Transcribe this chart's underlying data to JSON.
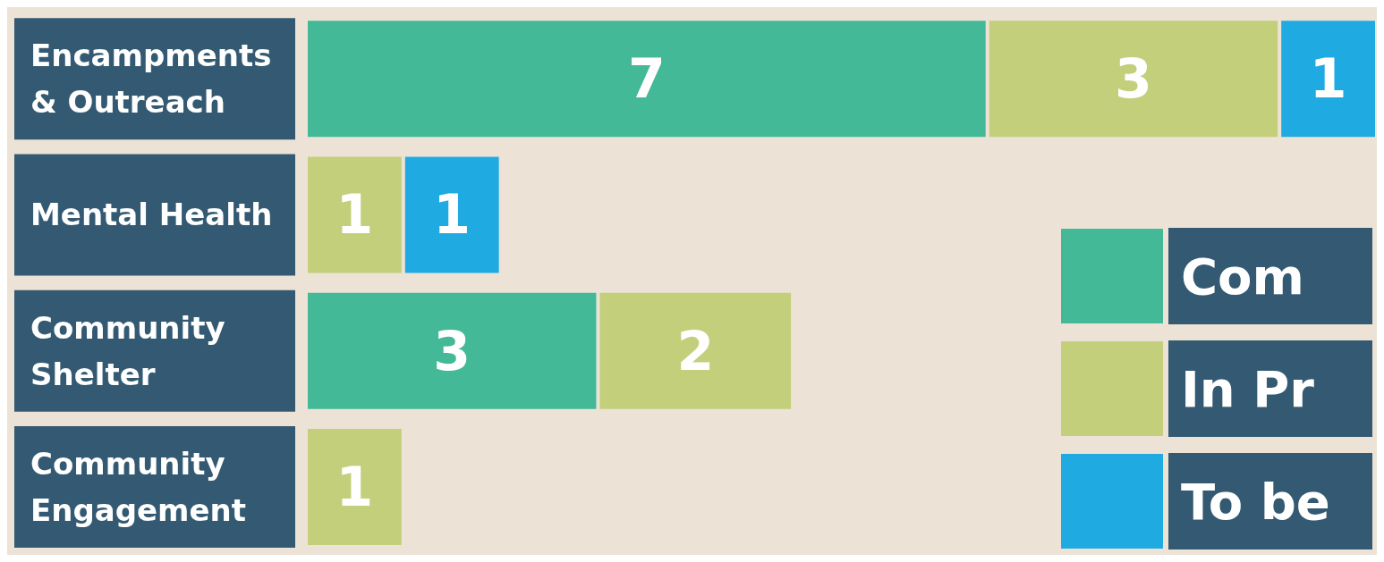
{
  "chart_data": {
    "type": "bar",
    "orientation": "horizontal",
    "stacked": true,
    "data_labels": true,
    "legend": "bottom right",
    "categories": [
      "Encampments & Outreach",
      "Mental Health",
      "Community Shelter",
      "Community Engagement"
    ],
    "series": [
      {
        "name": "Com",
        "color": "#43b997",
        "values": [
          7,
          null,
          3,
          null
        ]
      },
      {
        "name": "In Pr",
        "color": "#c3cf7b",
        "values": [
          3,
          1,
          2,
          1
        ]
      },
      {
        "name": "To be",
        "color": "#1faae2",
        "values": [
          1,
          1,
          null,
          null
        ]
      }
    ]
  }
}
